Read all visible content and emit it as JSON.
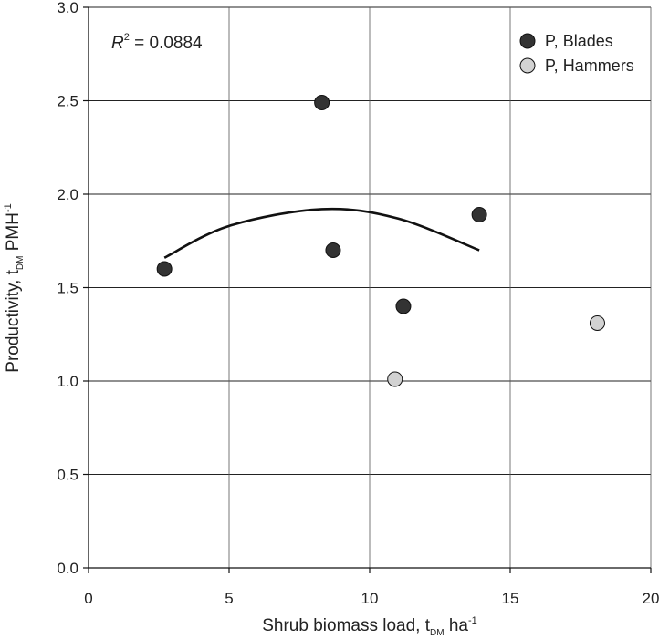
{
  "chart_data": {
    "type": "scatter",
    "xlabel": {
      "main": "Shrub biomass load, t",
      "sub": "DM",
      "unit": " ha",
      "sup": "-1"
    },
    "ylabel": {
      "main": "Productivity, t",
      "sub": "DM",
      "unit": " PMH",
      "sup": "-1"
    },
    "xlim": [
      0,
      20
    ],
    "ylim": [
      0,
      3.0
    ],
    "x_ticks": [
      0,
      5,
      10,
      15,
      20
    ],
    "x_tick_labels": [
      "0",
      "5",
      "10",
      "15",
      "20"
    ],
    "y_ticks": [
      0,
      0.5,
      1.0,
      1.5,
      2.0,
      2.5,
      3.0
    ],
    "y_tick_labels": [
      "0.0",
      "0.5",
      "1.0",
      "1.5",
      "2.0",
      "2.5",
      "3.0"
    ],
    "grid": true,
    "legend_position": "top-right",
    "annotation": {
      "label": "R",
      "sup": "2",
      "text": " = 0.0884"
    },
    "series": [
      {
        "name": "P, Blades",
        "color": "#333333",
        "points": [
          {
            "x": 2.7,
            "y": 1.6
          },
          {
            "x": 8.3,
            "y": 2.49
          },
          {
            "x": 8.7,
            "y": 1.7
          },
          {
            "x": 11.2,
            "y": 1.4
          },
          {
            "x": 13.9,
            "y": 1.89
          }
        ]
      },
      {
        "name": "P, Hammers",
        "color": "#d2d2d2",
        "points": [
          {
            "x": 10.9,
            "y": 1.01
          },
          {
            "x": 18.1,
            "y": 1.31
          }
        ]
      }
    ],
    "trendline": {
      "kind": "quadratic",
      "x_range": [
        2.7,
        13.9
      ],
      "points": [
        {
          "x": 2.7,
          "y": 1.66
        },
        {
          "x": 5.0,
          "y": 1.83
        },
        {
          "x": 8.3,
          "y": 1.92
        },
        {
          "x": 11.0,
          "y": 1.87
        },
        {
          "x": 13.9,
          "y": 1.7
        }
      ]
    }
  }
}
